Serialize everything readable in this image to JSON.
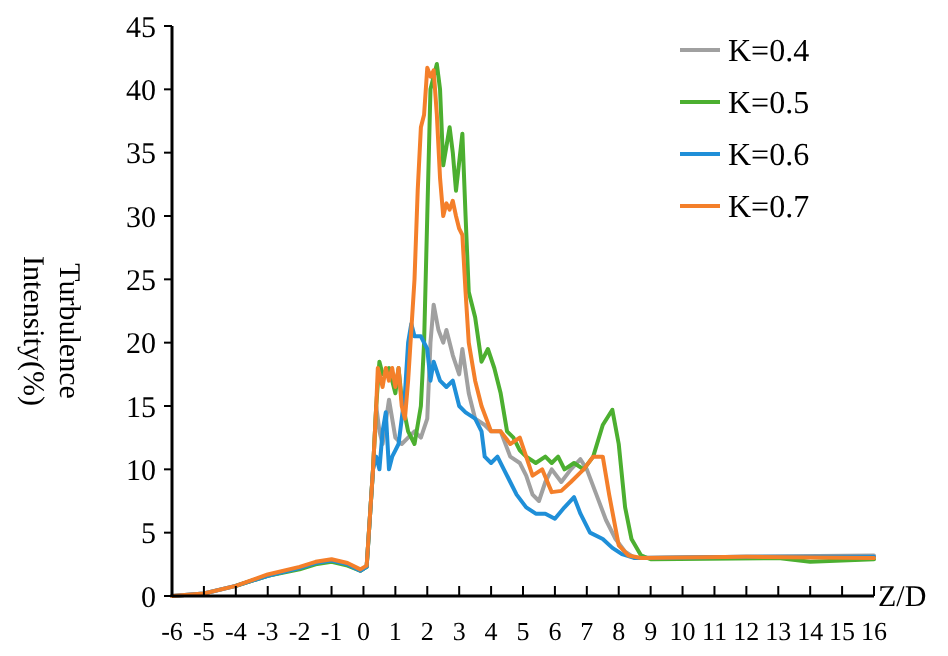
{
  "chart_data": {
    "type": "line",
    "xlabel": "Z/D",
    "ylabel": "Turbulence Intensity(%)",
    "xlim": [
      -6,
      16
    ],
    "xticks": [
      -6,
      -5,
      -4,
      -3,
      -2,
      -1,
      0,
      1,
      2,
      3,
      4,
      5,
      6,
      7,
      8,
      9,
      10,
      11,
      12,
      13,
      14,
      15,
      16
    ],
    "ylim": [
      0,
      45
    ],
    "yticks": [
      0,
      5,
      10,
      15,
      20,
      25,
      30,
      35,
      40,
      45
    ],
    "grid": false,
    "legend": "top right",
    "marker": "none",
    "line_style": "solid",
    "series": [
      {
        "name": "K=0.4",
        "color": "#a0a0a0",
        "x": [
          -6,
          -5,
          -4,
          -3,
          -2,
          -1.5,
          -1,
          -0.5,
          -0.1,
          0.1,
          0.3,
          0.4,
          0.5,
          0.6,
          0.8,
          1.0,
          1.2,
          1.4,
          1.6,
          1.8,
          2.0,
          2.1,
          2.2,
          2.35,
          2.5,
          2.6,
          2.8,
          3.0,
          3.1,
          3.3,
          3.5,
          3.8,
          4.0,
          4.3,
          4.6,
          4.9,
          5.1,
          5.3,
          5.5,
          5.7,
          5.9,
          6.2,
          6.5,
          6.8,
          7.0,
          7.3,
          7.6,
          7.9,
          8.2,
          8.5,
          12,
          16
        ],
        "values": [
          0,
          0.2,
          0.8,
          1.6,
          2.2,
          2.6,
          2.8,
          2.5,
          2.0,
          2.3,
          10,
          15,
          13,
          12,
          15.5,
          12.5,
          12,
          12.5,
          13,
          12.5,
          14,
          20,
          23,
          21,
          20,
          21,
          19,
          17.5,
          19.5,
          16,
          14,
          13.5,
          13,
          13,
          11,
          10.5,
          9.5,
          8,
          7.5,
          9,
          10,
          9,
          10,
          10.8,
          10,
          8,
          6,
          4.5,
          3.5,
          3.0,
          3.1,
          3.2
        ]
      },
      {
        "name": "K=0.5",
        "color": "#4caf30",
        "x": [
          -4,
          -3,
          -2,
          -1.5,
          -1,
          -0.5,
          -0.1,
          0.1,
          0.3,
          0.4,
          0.5,
          0.6,
          0.8,
          1.0,
          1.1,
          1.2,
          1.4,
          1.6,
          1.8,
          1.9,
          2.0,
          2.1,
          2.3,
          2.4,
          2.5,
          2.7,
          2.8,
          2.9,
          3.1,
          3.2,
          3.3,
          3.5,
          3.7,
          3.9,
          4.1,
          4.3,
          4.5,
          4.7,
          4.9,
          5.1,
          5.4,
          5.7,
          5.9,
          6.1,
          6.3,
          6.6,
          6.9,
          7.2,
          7.5,
          7.8,
          8.0,
          8.2,
          8.4,
          8.7,
          9,
          13,
          14,
          16
        ],
        "values": [
          0.8,
          1.6,
          2.1,
          2.5,
          2.7,
          2.4,
          2.0,
          2.3,
          10,
          15,
          18.5,
          17.5,
          18,
          16,
          18,
          15.5,
          13,
          12,
          15,
          20,
          30,
          40,
          42,
          40,
          34,
          37,
          35,
          32,
          36.5,
          30,
          24,
          22,
          18.5,
          19.5,
          18,
          16,
          13,
          12.5,
          11.5,
          11,
          10.5,
          11,
          10.5,
          11,
          10,
          10.5,
          10,
          11,
          13.5,
          14.7,
          12,
          7,
          4.5,
          3.2,
          2.9,
          3,
          2.7,
          2.9
        ]
      },
      {
        "name": "K=0.6",
        "color": "#1f8fd8",
        "x": [
          -6,
          -5,
          -4,
          -3,
          -2,
          -1.5,
          -1,
          -0.5,
          -0.1,
          0.1,
          0.3,
          0.4,
          0.5,
          0.6,
          0.7,
          0.8,
          0.9,
          1.0,
          1.1,
          1.2,
          1.3,
          1.4,
          1.5,
          1.6,
          1.8,
          2.0,
          2.1,
          2.2,
          2.4,
          2.6,
          2.8,
          3.0,
          3.2,
          3.5,
          3.7,
          3.8,
          4.0,
          4.2,
          4.4,
          4.6,
          4.8,
          5.1,
          5.4,
          5.7,
          6.0,
          6.3,
          6.6,
          6.8,
          7.1,
          7.5,
          7.8,
          8.1,
          8.5,
          12,
          16
        ],
        "values": [
          0,
          0.2,
          0.8,
          1.6,
          2.2,
          2.6,
          2.8,
          2.5,
          2.0,
          2.3,
          10,
          11,
          10,
          13,
          14.5,
          10,
          11,
          11.5,
          12,
          14,
          16,
          20,
          21.5,
          20.5,
          20.5,
          19.5,
          17,
          18.5,
          17,
          16.5,
          17,
          15,
          14.5,
          14,
          13,
          11,
          10.5,
          11,
          10,
          9,
          8,
          7,
          6.5,
          6.5,
          6.1,
          7,
          7.8,
          6.5,
          5,
          4.5,
          3.8,
          3.3,
          3.0,
          3.1,
          3.1
        ]
      },
      {
        "name": "K=0.7",
        "color": "#f47f2a",
        "x": [
          -6,
          -5,
          -4,
          -3,
          -2,
          -1.5,
          -1,
          -0.5,
          -0.1,
          0.1,
          0.3,
          0.4,
          0.45,
          0.6,
          0.7,
          0.8,
          0.9,
          1.0,
          1.1,
          1.2,
          1.3,
          1.4,
          1.6,
          1.7,
          1.8,
          1.9,
          2.0,
          2.1,
          2.2,
          2.3,
          2.4,
          2.5,
          2.6,
          2.7,
          2.8,
          2.9,
          3.0,
          3.1,
          3.2,
          3.3,
          3.5,
          3.7,
          4.0,
          4.3,
          4.6,
          4.9,
          5.1,
          5.3,
          5.6,
          5.9,
          6.2,
          6.5,
          6.9,
          7.2,
          7.5,
          7.7,
          8.0,
          8.3,
          8.7,
          12,
          16
        ],
        "values": [
          0,
          0.2,
          0.8,
          1.7,
          2.3,
          2.7,
          2.9,
          2.6,
          2.1,
          2.4,
          10,
          15,
          18,
          16.5,
          18,
          17,
          18,
          16.5,
          18,
          15,
          14,
          17,
          25,
          32,
          37,
          38,
          41.7,
          41,
          41.5,
          38,
          33,
          30,
          31,
          30.5,
          31.2,
          30,
          29,
          28.5,
          24,
          20,
          17,
          15,
          13,
          13,
          12,
          12.5,
          11,
          9.5,
          10,
          8.2,
          8.3,
          9,
          10,
          11,
          11,
          8,
          4,
          3.2,
          3,
          3.1,
          3
        ]
      }
    ]
  }
}
